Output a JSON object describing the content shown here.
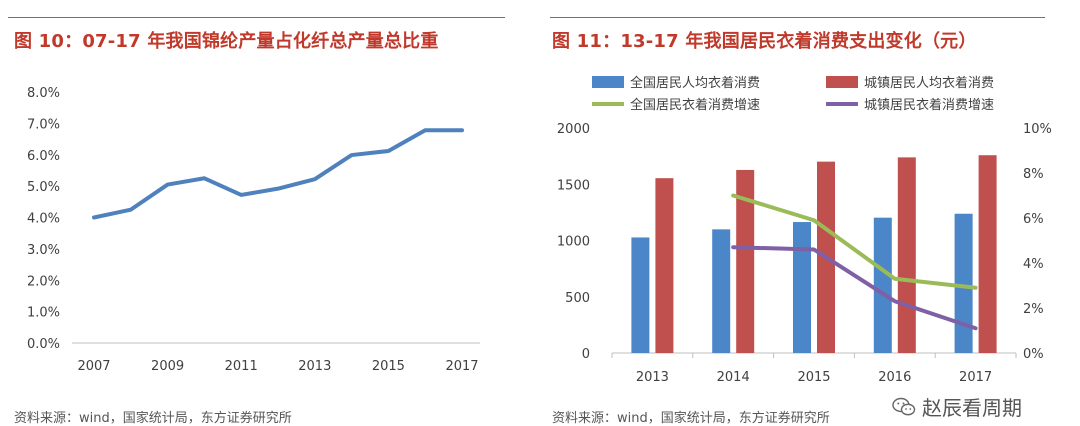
{
  "left_panel": {
    "title": "图 10：07-17 年我国锦纶产量占化纤总产量总比重",
    "source": "资料来源：wind，国家统计局，东方证券研究所"
  },
  "right_panel": {
    "title": "图 11：13-17 年我国居民衣着消费支出变化（元）",
    "source": "资料来源：wind，国家统计局，东方证券研究所"
  },
  "watermark": {
    "text": "赵辰看周期",
    "icon": "wechat-icon"
  },
  "colors": {
    "accent_red": "#c0392b",
    "line_blue": "#4f81bd",
    "bar_blue": "#4a86c8",
    "bar_red": "#c0504d",
    "line_green": "#9bbb59",
    "line_purple": "#7f5fa6"
  },
  "chart_data": [
    {
      "type": "line",
      "title": "",
      "xlabel": "",
      "ylabel": "",
      "x": [
        2007,
        2008,
        2009,
        2010,
        2011,
        2012,
        2013,
        2014,
        2015,
        2016,
        2017
      ],
      "x_tick_labels": [
        "2007",
        "2009",
        "2011",
        "2013",
        "2015",
        "2017"
      ],
      "x_tick_values": [
        2007,
        2009,
        2011,
        2013,
        2015,
        2017
      ],
      "y_tick_labels": [
        "0.0%",
        "1.0%",
        "2.0%",
        "3.0%",
        "4.0%",
        "5.0%",
        "6.0%",
        "7.0%",
        "8.0%"
      ],
      "ylim": [
        0,
        8
      ],
      "series": [
        {
          "values": [
            4.0,
            4.25,
            5.05,
            5.25,
            4.72,
            4.92,
            5.22,
            5.99,
            6.12,
            6.78,
            6.78
          ]
        }
      ],
      "grid": false,
      "legend": "none"
    },
    {
      "type": "bar",
      "title": "",
      "categories": [
        "2013",
        "2014",
        "2015",
        "2016",
        "2017"
      ],
      "y_left_tick_labels": [
        "0",
        "500",
        "1000",
        "1500",
        "2000"
      ],
      "ylim_left": [
        0,
        2000
      ],
      "y_right_tick_labels": [
        "0%",
        "2%",
        "4%",
        "6%",
        "8%",
        "10%"
      ],
      "ylim_right": [
        0,
        10
      ],
      "series": [
        {
          "name": "全国居民人均衣着消费",
          "kind": "bar",
          "axis": "left",
          "values": [
            1027,
            1099,
            1164,
            1203,
            1238
          ]
        },
        {
          "name": "城镇居民人均衣着消费",
          "kind": "bar",
          "axis": "left",
          "values": [
            1554,
            1627,
            1701,
            1739,
            1758
          ]
        },
        {
          "name": "全国居民衣着消费增速",
          "kind": "line",
          "axis": "right",
          "values": [
            null,
            7.0,
            5.9,
            3.3,
            2.9
          ]
        },
        {
          "name": "城镇居民衣着消费增速",
          "kind": "line",
          "axis": "right",
          "values": [
            null,
            4.7,
            4.6,
            2.3,
            1.1
          ]
        }
      ],
      "grid": false,
      "legend": "top"
    }
  ]
}
